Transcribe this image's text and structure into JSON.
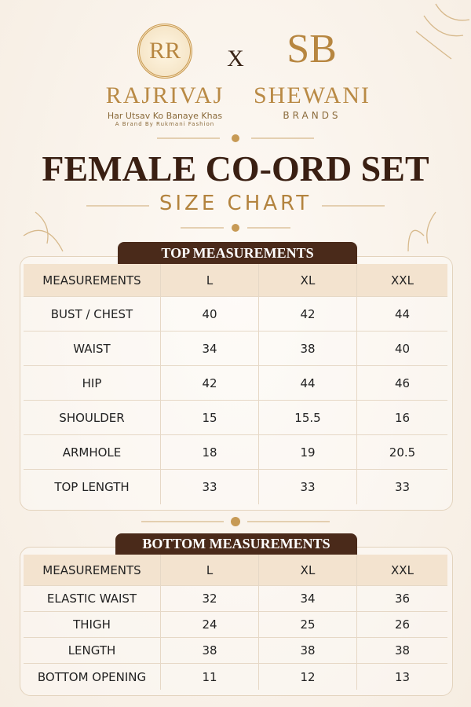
{
  "brands": {
    "left": {
      "monogram": "RR",
      "name": "RAJRIVAJ",
      "tagline": "Har Utsav Ko Banaye Khas",
      "byline": "A Brand By Rukmani Fashion"
    },
    "separator": "X",
    "right": {
      "monogram": "SB",
      "name": "SHEWANI",
      "sub": "BRANDS"
    }
  },
  "title": "FEMALE CO-ORD SET",
  "subtitle": "SIZE CHART",
  "tables": [
    {
      "title": "TOP MEASUREMENTS",
      "header": [
        "MEASUREMENTS",
        "L",
        "XL",
        "XXL"
      ],
      "rows": [
        [
          "BUST / CHEST",
          "40",
          "42",
          "44"
        ],
        [
          "WAIST",
          "34",
          "38",
          "40"
        ],
        [
          "HIP",
          "42",
          "44",
          "46"
        ],
        [
          "SHOULDER",
          "15",
          "15.5",
          "16"
        ],
        [
          "ARMHOLE",
          "18",
          "19",
          "20.5"
        ],
        [
          "TOP LENGTH",
          "33",
          "33",
          "33"
        ]
      ]
    },
    {
      "title": "BOTTOM MEASUREMENTS",
      "header": [
        "MEASUREMENTS",
        "L",
        "XL",
        "XXL"
      ],
      "rows": [
        [
          "ELASTIC WAIST",
          "32",
          "34",
          "36"
        ],
        [
          "THIGH",
          "24",
          "25",
          "26"
        ],
        [
          "LENGTH",
          "38",
          "38",
          "38"
        ],
        [
          "BOTTOM OPENING",
          "11",
          "12",
          "13"
        ]
      ]
    }
  ]
}
